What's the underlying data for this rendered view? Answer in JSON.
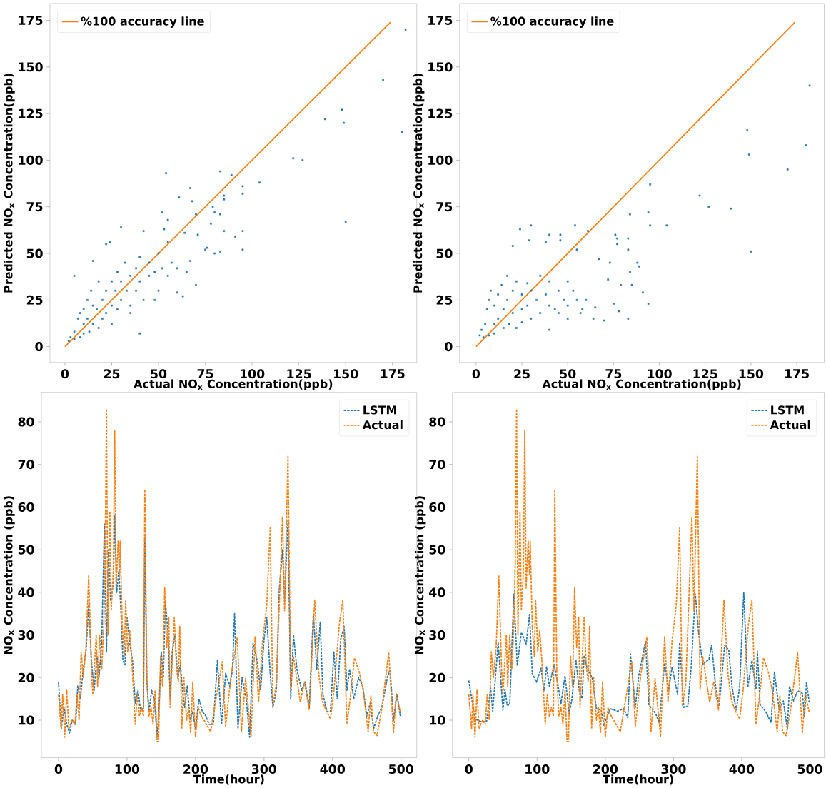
{
  "chart_data": [
    {
      "type": "scatter",
      "xlabel": "Actual NO$_{x}$ Concentration(ppb)",
      "ylabel": "Predicted NO$_{x}$ Concentration(ppb)",
      "xlim": [
        -8,
        188
      ],
      "ylim": [
        -8.5,
        184
      ],
      "xticks": [
        0,
        25,
        50,
        75,
        100,
        125,
        150,
        175
      ],
      "yticks": [
        0,
        25,
        50,
        75,
        100,
        125,
        150,
        175
      ],
      "legend": "top left",
      "grid": false,
      "series": [
        {
          "type": "scatter",
          "marker": "square",
          "color": "#1f77b4",
          "x": [
            182,
            170,
            148,
            149,
            139,
            180,
            122,
            127,
            150,
            104,
            95,
            95,
            85,
            85,
            83,
            89,
            79,
            80,
            83,
            78,
            85,
            95,
            91,
            95,
            83,
            80,
            76,
            75,
            54,
            61,
            67,
            68,
            70,
            71,
            52,
            55,
            64,
            70,
            63,
            60,
            40,
            30,
            15,
            5,
            22,
            24,
            42,
            53,
            55,
            2,
            3,
            5,
            5,
            7,
            8,
            8,
            10,
            10,
            10,
            12,
            12,
            13,
            14,
            15,
            15,
            17,
            18,
            18,
            20,
            20,
            22,
            22,
            25,
            25,
            25,
            27,
            28,
            28,
            30,
            30,
            32,
            33,
            35,
            35,
            38,
            38,
            40,
            40,
            42,
            45,
            45,
            48,
            50,
            50,
            52,
            55,
            57,
            60,
            65,
            67,
            48,
            35
          ],
          "values": [
            170,
            143,
            127,
            120,
            122,
            115,
            101,
            100,
            67,
            88,
            86,
            82,
            81,
            79,
            94,
            92,
            75,
            72,
            71,
            66,
            62,
            62,
            59,
            52,
            51,
            50,
            53,
            52,
            93,
            80,
            85,
            78,
            71,
            60,
            72,
            68,
            61,
            33,
            27,
            29,
            7,
            64,
            46,
            38,
            55,
            56,
            62,
            63,
            56,
            3,
            5,
            8,
            4,
            15,
            18,
            5,
            20,
            12,
            7,
            25,
            15,
            8,
            30,
            22,
            12,
            20,
            35,
            10,
            25,
            15,
            30,
            18,
            35,
            22,
            12,
            30,
            40,
            20,
            35,
            25,
            45,
            30,
            38,
            22,
            42,
            30,
            48,
            35,
            25,
            45,
            38,
            40,
            50,
            30,
            42,
            38,
            45,
            42,
            40,
            46,
            25,
            18
          ]
        },
        {
          "type": "line",
          "name": "%100 accuracy line",
          "color": "#ff7f0e",
          "line_style": "solid",
          "x": [
            0,
            174
          ],
          "values": [
            0,
            174
          ]
        }
      ]
    },
    {
      "type": "scatter",
      "xlabel": "Actual NO$_{x}$ Concentration(ppb)",
      "ylabel": "Predicted NO$_{x}$ Concentration(ppb)",
      "xlim": [
        -9,
        190
      ],
      "ylim": [
        -8.5,
        184
      ],
      "xticks": [
        0,
        25,
        50,
        75,
        100,
        125,
        150,
        175
      ],
      "yticks": [
        0,
        25,
        50,
        75,
        100,
        125,
        150,
        175
      ],
      "legend": "top left",
      "grid": false,
      "series": [
        {
          "type": "scatter",
          "marker": "square",
          "color": "#1f77b4",
          "x": [
            182,
            180,
            170,
            148,
            149,
            150,
            139,
            127,
            122,
            104,
            95,
            94,
            95,
            94,
            91,
            88,
            89,
            84,
            83,
            83,
            84,
            83,
            85,
            79,
            78,
            77,
            77,
            76,
            75,
            70,
            72,
            73,
            67,
            65,
            64,
            61,
            55,
            54,
            46,
            46,
            40,
            38,
            30,
            29,
            24,
            20,
            58,
            60,
            50,
            40,
            2,
            3,
            4,
            5,
            6,
            7,
            7,
            8,
            10,
            10,
            10,
            12,
            12,
            14,
            15,
            15,
            17,
            17,
            18,
            20,
            20,
            22,
            22,
            25,
            25,
            25,
            28,
            28,
            30,
            30,
            33,
            35,
            35,
            38,
            40,
            40,
            43,
            45,
            45,
            48,
            50,
            50,
            53,
            55,
            57
          ],
          "values": [
            140,
            108,
            95,
            116,
            103,
            51,
            74,
            75,
            81,
            65,
            87,
            72,
            65,
            23,
            29,
            45,
            43,
            71,
            58,
            52,
            40,
            15,
            33,
            33,
            19,
            58,
            55,
            60,
            23,
            14,
            36,
            45,
            47,
            21,
            15,
            62,
            52,
            65,
            60,
            57,
            60,
            56,
            65,
            57,
            63,
            54,
            20,
            25,
            15,
            9,
            6,
            9,
            5,
            12,
            20,
            25,
            6,
            30,
            22,
            12,
            7,
            28,
            15,
            33,
            20,
            10,
            38,
            25,
            12,
            30,
            18,
            35,
            10,
            28,
            20,
            13,
            34,
            22,
            30,
            15,
            25,
            38,
            18,
            28,
            22,
            35,
            20,
            30,
            18,
            25,
            35,
            22,
            30,
            25,
            18
          ]
        },
        {
          "type": "line",
          "name": "%100 accuracy line",
          "color": "#ff7f0e",
          "line_style": "solid",
          "x": [
            0,
            174
          ],
          "values": [
            0,
            174
          ]
        }
      ]
    },
    {
      "type": "line",
      "xlabel": "Time(hour)",
      "ylabel": "NO$_{X}$ Concentration (ppb)",
      "xlim": [
        -25,
        523
      ],
      "ylim": [
        1.2,
        86.9
      ],
      "xticks": [
        0,
        100,
        200,
        300,
        400,
        500
      ],
      "yticks": [
        10,
        20,
        30,
        40,
        50,
        60,
        70,
        80
      ],
      "legend": "top right",
      "line_style": "dashed",
      "grid": false,
      "series": [
        {
          "name": "LSTM",
          "color": "#1f77b4",
          "x": [
            0,
            4,
            8,
            12,
            16,
            20,
            25,
            28,
            32,
            36,
            40,
            44,
            48,
            52,
            56,
            59,
            63,
            67,
            70,
            73,
            76,
            80,
            82,
            85,
            88,
            91,
            94,
            97,
            100,
            104,
            108,
            112,
            116,
            120,
            124,
            126,
            129,
            132,
            136,
            140,
            144,
            147,
            150,
            153,
            156,
            160,
            163,
            166,
            170,
            174,
            178,
            181,
            184,
            188,
            192,
            196,
            200,
            205,
            210,
            215,
            220,
            226,
            232,
            238,
            244,
            250,
            254,
            257,
            262,
            268,
            274,
            279,
            284,
            290,
            295,
            300,
            304,
            309,
            313,
            318,
            322,
            327,
            330,
            335,
            339,
            343,
            348,
            355,
            360,
            366,
            372,
            377,
            382,
            386,
            392,
            397,
            402,
            407,
            412,
            417,
            421,
            425,
            431,
            438,
            444,
            450,
            455,
            460,
            466,
            472,
            480,
            484,
            489,
            494,
            499
          ],
          "values": [
            19,
            8,
            13,
            9,
            7,
            10,
            9,
            18,
            15,
            22,
            26,
            37,
            24,
            17,
            25,
            20,
            28,
            56,
            26,
            50,
            38,
            42,
            58,
            40,
            45,
            36,
            24,
            23,
            34,
            28,
            24,
            14,
            17,
            12,
            13,
            53,
            19,
            12,
            17,
            15,
            6,
            14,
            26,
            20,
            38,
            30,
            15,
            26,
            30,
            20,
            23,
            17,
            13,
            18,
            10,
            12,
            8,
            15,
            12,
            11,
            9,
            9,
            24,
            9,
            21,
            18,
            22,
            35,
            8,
            20,
            15,
            6,
            28,
            24,
            17,
            29,
            34,
            21,
            13,
            17,
            40,
            50,
            38,
            57,
            15,
            30,
            22,
            17,
            19,
            13,
            35,
            22,
            33,
            16,
            12,
            12,
            26,
            15,
            29,
            32,
            17,
            22,
            15,
            20,
            18,
            11,
            14,
            8,
            11,
            13,
            20,
            22,
            10,
            16,
            11
          ]
        },
        {
          "name": "Actual",
          "color": "#ff7f0e",
          "x": [
            0,
            4,
            6,
            9,
            12,
            15,
            20,
            24,
            27,
            30,
            33,
            36,
            40,
            44,
            48,
            50,
            55,
            57,
            60,
            63,
            66,
            68,
            70,
            72,
            75,
            77,
            80,
            82,
            84,
            87,
            89,
            90,
            93,
            96,
            98,
            101,
            104,
            107,
            112,
            115,
            118,
            121,
            124,
            126,
            129,
            132,
            135,
            138,
            141,
            144,
            146,
            149,
            152,
            155,
            158,
            161,
            163,
            166,
            169,
            172,
            175,
            177,
            180,
            183,
            187,
            190,
            193,
            196,
            200,
            204,
            207,
            222,
            239,
            244,
            252,
            261,
            267,
            273,
            281,
            287,
            292,
            298,
            304,
            309,
            313,
            318,
            327,
            330,
            335,
            339,
            343,
            353,
            359,
            366,
            374,
            380,
            385,
            391,
            397,
            402,
            410,
            415,
            421,
            426,
            432,
            439,
            445,
            452,
            456,
            460,
            465,
            472,
            482,
            489,
            493,
            499
          ],
          "values": [
            16,
            8,
            16,
            6,
            17,
            8,
            10,
            9,
            16,
            10,
            26,
            20,
            27,
            44,
            22,
            16,
            30,
            18,
            30,
            22,
            32,
            47,
            83,
            30,
            59,
            36,
            45,
            78,
            41,
            52,
            44,
            52,
            32,
            25,
            38,
            26,
            31,
            24,
            9,
            16,
            11,
            13,
            11,
            64,
            20,
            11,
            13,
            9,
            17,
            5,
            5,
            25,
            18,
            41,
            27,
            34,
            13,
            24,
            34,
            23,
            19,
            32,
            8,
            20,
            10,
            13,
            7,
            19,
            6,
            13,
            11.5,
            7.3,
            23.7,
            8.5,
            20.7,
            29.4,
            7.3,
            19.8,
            6.1,
            29.7,
            14.2,
            28.8,
            36.9,
            55.1,
            13.3,
            18.6,
            57.8,
            35.7,
            72.1,
            17.2,
            24.9,
            14.2,
            19,
            12.4,
            38.1,
            20.7,
            14.6,
            12.1,
            10.3,
            16.9,
            32.7,
            38.1,
            9.1,
            15.4,
            24.6,
            21.3,
            16.9,
            7.3,
            15.7,
            7.3,
            6.4,
            12.7,
            25.9,
            7,
            16.3,
            11.8
          ]
        }
      ]
    },
    {
      "type": "line",
      "xlabel": "Time(hour)",
      "ylabel": "NO$_{X}$ Concentration (ppb)",
      "xlim": [
        -24,
        521
      ],
      "ylim": [
        1.2,
        86.9
      ],
      "xticks": [
        0,
        100,
        200,
        300,
        400,
        500
      ],
      "yticks": [
        10,
        20,
        30,
        40,
        50,
        60,
        70,
        80
      ],
      "legend": "top right",
      "line_style": "dashed",
      "grid": false,
      "series": [
        {
          "name": "LSTM",
          "color": "#1f77b4",
          "x": [
            0,
            9,
            17,
            26,
            32,
            35,
            43,
            50,
            53,
            56,
            60,
            66,
            71,
            77,
            84,
            89,
            93,
            99,
            106,
            110,
            114,
            118,
            125,
            131,
            135,
            141,
            147,
            151,
            157,
            162,
            166,
            169,
            173,
            181,
            187,
            194,
            198,
            207,
            218,
            227,
            233,
            237,
            244,
            249,
            259,
            264,
            274,
            279,
            287,
            293,
            298,
            306,
            309,
            315,
            321,
            326,
            332,
            337,
            343,
            352,
            356,
            362,
            367,
            375,
            381,
            386,
            392,
            397,
            403,
            409,
            415,
            421,
            423,
            427,
            435,
            443,
            448,
            455,
            461,
            467,
            470,
            476,
            482,
            489,
            492,
            495,
            499
          ],
          "values": [
            19.3,
            10.3,
            9.7,
            9.7,
            17.5,
            12.1,
            28.2,
            12.4,
            17.2,
            13.6,
            13.6,
            39.6,
            22.8,
            30.6,
            27.9,
            34.8,
            21,
            18.9,
            22.2,
            16.9,
            22.5,
            18,
            23.1,
            18,
            13.8,
            20.4,
            11.5,
            14.8,
            24,
            16.9,
            15.1,
            25.2,
            22.5,
            19.8,
            12.7,
            12.4,
            8.8,
            12.7,
            12.1,
            12.7,
            10.6,
            25.5,
            13,
            20.4,
            28.5,
            13.6,
            11.5,
            9.4,
            23.4,
            17.2,
            22.5,
            16,
            28.2,
            13,
            13.3,
            22.5,
            39.6,
            30.3,
            23.1,
            24.3,
            27.6,
            17.6,
            13.3,
            27.6,
            26.5,
            17.6,
            12.4,
            17.8,
            39.9,
            17.8,
            24,
            17.2,
            26.2,
            13.6,
            12.1,
            9.4,
            21.3,
            12.4,
            14.5,
            7.9,
            18,
            14.5,
            16.9,
            16.3,
            10.6,
            18.9,
            14.2
          ]
        },
        {
          "name": "Actual",
          "color": "#ff7f0e",
          "x": [
            0,
            4,
            6,
            9,
            12,
            15,
            20,
            24,
            27,
            30,
            33,
            36,
            40,
            44,
            48,
            50,
            55,
            57,
            60,
            63,
            66,
            68,
            70,
            72,
            75,
            77,
            80,
            82,
            84,
            87,
            89,
            90,
            93,
            96,
            98,
            101,
            104,
            107,
            112,
            115,
            118,
            121,
            124,
            126,
            129,
            132,
            135,
            138,
            141,
            144,
            146,
            149,
            152,
            155,
            158,
            161,
            163,
            166,
            169,
            172,
            175,
            177,
            180,
            183,
            187,
            190,
            193,
            196,
            200,
            204,
            207,
            222,
            239,
            244,
            252,
            261,
            267,
            273,
            281,
            287,
            292,
            298,
            304,
            309,
            313,
            318,
            327,
            330,
            335,
            339,
            343,
            353,
            359,
            366,
            374,
            380,
            385,
            391,
            397,
            402,
            410,
            415,
            421,
            426,
            432,
            439,
            445,
            452,
            456,
            460,
            465,
            472,
            482,
            489,
            493,
            499
          ],
          "values": [
            16,
            8,
            16,
            6,
            17,
            8,
            10,
            9,
            16,
            10,
            26,
            20,
            27,
            44,
            22,
            16,
            30,
            18,
            30,
            22,
            32,
            47,
            83,
            30,
            59,
            36,
            45,
            78,
            41,
            52,
            44,
            52,
            32,
            25,
            38,
            26,
            31,
            24,
            9,
            16,
            11,
            13,
            11,
            64,
            20,
            11,
            13,
            9,
            17,
            5,
            5,
            25,
            18,
            41,
            27,
            34,
            13,
            24,
            34,
            23,
            19,
            32,
            8,
            20,
            10,
            13,
            7,
            19,
            6,
            13,
            11.5,
            7.3,
            23.7,
            8.5,
            20.7,
            29.4,
            7.3,
            19.8,
            6.1,
            29.7,
            14.2,
            28.8,
            36.9,
            55.1,
            13.3,
            18.6,
            57.8,
            35.7,
            72.1,
            17.2,
            24.9,
            14.2,
            19,
            12.4,
            38.1,
            20.7,
            14.6,
            12.1,
            10.3,
            16.9,
            32.7,
            38.1,
            9.1,
            15.4,
            24.6,
            21.3,
            16.9,
            7.3,
            15.7,
            7.3,
            6.4,
            12.7,
            25.9,
            7,
            16.3,
            11.8
          ]
        }
      ]
    }
  ]
}
